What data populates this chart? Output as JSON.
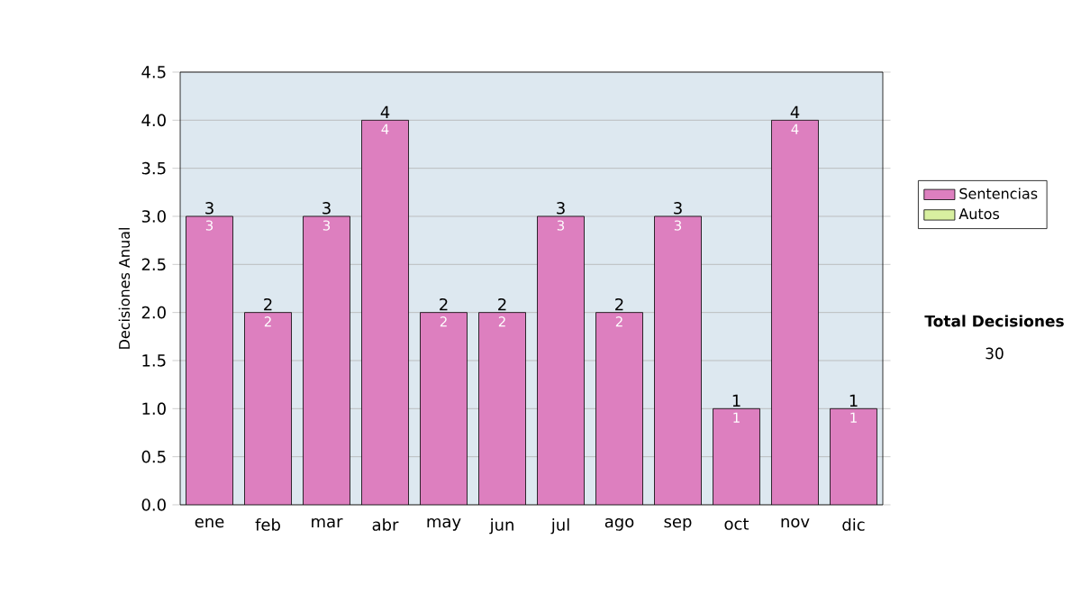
{
  "chart_data": {
    "type": "bar",
    "stacked": true,
    "ylabel": "Decisiones Anual",
    "categories": [
      "ene",
      "feb",
      "mar",
      "abr",
      "may",
      "jun",
      "jul",
      "ago",
      "sep",
      "oct",
      "nov",
      "dic"
    ],
    "series": [
      {
        "name": "Sentencias",
        "color": "#dd7fbf",
        "values": [
          3,
          2,
          3,
          4,
          2,
          2,
          3,
          2,
          3,
          1,
          4,
          1
        ],
        "value_labels": [
          "3",
          "2",
          "3",
          "4",
          "2",
          "2",
          "3",
          "2",
          "3",
          "1",
          "4",
          "1"
        ]
      },
      {
        "name": "Autos",
        "color": "#d8f0a0",
        "values": [
          0,
          0,
          0,
          0,
          0,
          0,
          0,
          0,
          0,
          0,
          0,
          0
        ]
      }
    ],
    "totals": [
      "3",
      "2",
      "3",
      "4",
      "2",
      "2",
      "3",
      "2",
      "3",
      "1",
      "4",
      "1"
    ],
    "ylim": [
      0,
      4.5
    ],
    "yticks": [
      {
        "value": 0,
        "label": "0.0"
      },
      {
        "value": 0.5,
        "label": "0.5"
      },
      {
        "value": 1,
        "label": "1.0"
      },
      {
        "value": 1.5,
        "label": "1.5"
      },
      {
        "value": 2,
        "label": "2.0"
      },
      {
        "value": 2.5,
        "label": "2.5"
      },
      {
        "value": 3,
        "label": "3.0"
      },
      {
        "value": 3.5,
        "label": "3.5"
      },
      {
        "value": 4,
        "label": "4.0"
      },
      {
        "value": 4.5,
        "label": "4.5"
      }
    ],
    "grid": "y",
    "legend": "right",
    "annotations": [
      "Total Decisiones",
      "30"
    ]
  }
}
